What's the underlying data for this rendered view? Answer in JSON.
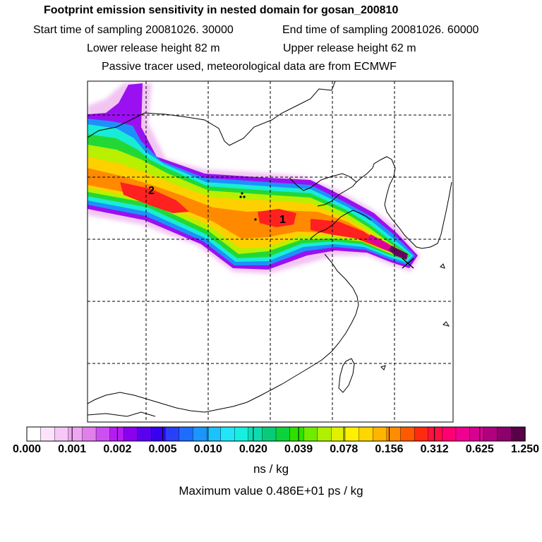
{
  "header": {
    "title": "Footprint emission sensitivity in nested domain for gosan_200810",
    "start_sampling": "Start time of sampling 20081026. 30000",
    "end_sampling": "End time of sampling 20081026. 60000",
    "lower_release": "Lower release height   82 m",
    "upper_release": "Upper release height   62 m",
    "tracer_info": "Passive tracer used, meteorological data are from ECMWF"
  },
  "map": {
    "point_labels": [
      "1",
      "2"
    ],
    "receptor_marker": "x-marker"
  },
  "colorbar": {
    "tick_labels": [
      "0.000",
      "0.001",
      "0.002",
      "0.005",
      "0.010",
      "0.020",
      "0.039",
      "0.078",
      "0.156",
      "0.312",
      "0.625",
      "1.250"
    ],
    "colors": [
      "#ffffff",
      "#fbe4fb",
      "#f5c8f5",
      "#eea6f0",
      "#e27fec",
      "#cc4ff0",
      "#b61cf2",
      "#8a00f0",
      "#5b00ee",
      "#3600f0",
      "#2a40f8",
      "#1e6cfb",
      "#1a96fc",
      "#1cc2fb",
      "#22e6f8",
      "#15f0e0",
      "#0cddb0",
      "#06cc7a",
      "#0cd23c",
      "#2ee000",
      "#6fec00",
      "#b0f000",
      "#e0f000",
      "#fff000",
      "#ffd600",
      "#ffb400",
      "#ff8c00",
      "#ff5a00",
      "#ff2a10",
      "#ff1040",
      "#ff0070",
      "#f00090",
      "#d80090",
      "#b00080",
      "#8c006c",
      "#5a0048"
    ],
    "unit": "ns / kg",
    "maximum": "Maximum value  0.486E+01 ps / kg"
  }
}
